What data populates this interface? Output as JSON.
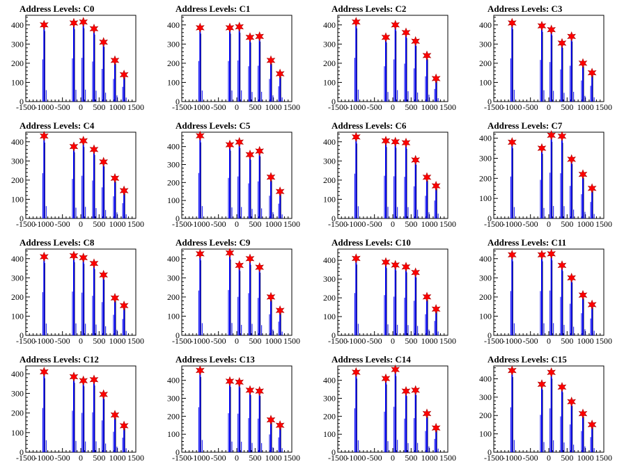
{
  "chart_data": [
    {
      "type": "bar",
      "title": "Address Levels: C0",
      "xlim": [
        -1500,
        1500
      ],
      "ylim": [
        0,
        450
      ],
      "xticks": [
        "-1500",
        "-1000",
        "-500",
        "0",
        "500",
        "1000",
        "1500"
      ],
      "yticks": [
        "0",
        "100",
        "200",
        "300",
        "400"
      ],
      "peaks": [
        {
          "x": -1000,
          "y": 400
        },
        {
          "x": -190,
          "y": 410
        },
        {
          "x": 70,
          "y": 415
        },
        {
          "x": 360,
          "y": 380
        },
        {
          "x": 620,
          "y": 310
        },
        {
          "x": 930,
          "y": 215
        },
        {
          "x": 1180,
          "y": 140
        }
      ]
    },
    {
      "type": "bar",
      "title": "Address Levels: C1",
      "xlim": [
        -1500,
        1500
      ],
      "ylim": [
        0,
        450
      ],
      "xticks": [
        "-1500",
        "-1000",
        "-500",
        "0",
        "500",
        "1000",
        "1500"
      ],
      "yticks": [
        "0",
        "100",
        "200",
        "300",
        "400"
      ],
      "peaks": [
        {
          "x": -1000,
          "y": 385
        },
        {
          "x": -190,
          "y": 385
        },
        {
          "x": 70,
          "y": 390
        },
        {
          "x": 360,
          "y": 335
        },
        {
          "x": 620,
          "y": 340
        },
        {
          "x": 930,
          "y": 215
        },
        {
          "x": 1180,
          "y": 145
        }
      ]
    },
    {
      "type": "bar",
      "title": "Address Levels: C2",
      "xlim": [
        -1500,
        1500
      ],
      "ylim": [
        0,
        450
      ],
      "xticks": [
        "-1500",
        "-1000",
        "-500",
        "0",
        "500",
        "1000",
        "1500"
      ],
      "yticks": [
        "0",
        "100",
        "200",
        "300",
        "400"
      ],
      "peaks": [
        {
          "x": -1000,
          "y": 415
        },
        {
          "x": -190,
          "y": 335
        },
        {
          "x": 70,
          "y": 400
        },
        {
          "x": 360,
          "y": 360
        },
        {
          "x": 620,
          "y": 315
        },
        {
          "x": 930,
          "y": 240
        },
        {
          "x": 1180,
          "y": 120
        }
      ]
    },
    {
      "type": "bar",
      "title": "Address Levels: C3",
      "xlim": [
        -1500,
        1500
      ],
      "ylim": [
        0,
        450
      ],
      "xticks": [
        "-1500",
        "-1000",
        "-500",
        "0",
        "500",
        "1000",
        "1500"
      ],
      "yticks": [
        "0",
        "100",
        "200",
        "300",
        "400"
      ],
      "peaks": [
        {
          "x": -1000,
          "y": 410
        },
        {
          "x": -190,
          "y": 395
        },
        {
          "x": 70,
          "y": 375
        },
        {
          "x": 360,
          "y": 305
        },
        {
          "x": 620,
          "y": 340
        },
        {
          "x": 930,
          "y": 200
        },
        {
          "x": 1180,
          "y": 150
        }
      ]
    },
    {
      "type": "bar",
      "title": "Address Levels: C4",
      "xlim": [
        -1500,
        1500
      ],
      "ylim": [
        0,
        450
      ],
      "xticks": [
        "-1500",
        "-1000",
        "-500",
        "0",
        "500",
        "1000",
        "1500"
      ],
      "yticks": [
        "0",
        "100",
        "200",
        "300",
        "400"
      ],
      "peaks": [
        {
          "x": -1000,
          "y": 430
        },
        {
          "x": -190,
          "y": 375
        },
        {
          "x": 70,
          "y": 405
        },
        {
          "x": 360,
          "y": 360
        },
        {
          "x": 620,
          "y": 295
        },
        {
          "x": 930,
          "y": 210
        },
        {
          "x": 1180,
          "y": 145
        }
      ]
    },
    {
      "type": "bar",
      "title": "Address Levels: C5",
      "xlim": [
        -1500,
        1500
      ],
      "ylim": [
        0,
        480
      ],
      "xticks": [
        "-1500",
        "-1000",
        "-500",
        "0",
        "500",
        "1000",
        "1500"
      ],
      "yticks": [
        "0",
        "100",
        "200",
        "300",
        "400"
      ],
      "peaks": [
        {
          "x": -1000,
          "y": 460
        },
        {
          "x": -190,
          "y": 410
        },
        {
          "x": 70,
          "y": 425
        },
        {
          "x": 360,
          "y": 355
        },
        {
          "x": 620,
          "y": 375
        },
        {
          "x": 930,
          "y": 230
        },
        {
          "x": 1180,
          "y": 150
        }
      ]
    },
    {
      "type": "bar",
      "title": "Address Levels: C6",
      "xlim": [
        -1500,
        1500
      ],
      "ylim": [
        0,
        450
      ],
      "xticks": [
        "-1500",
        "-1000",
        "-500",
        "0",
        "500",
        "1000",
        "1500"
      ],
      "yticks": [
        "0",
        "100",
        "200",
        "300",
        "400"
      ],
      "peaks": [
        {
          "x": -1000,
          "y": 425
        },
        {
          "x": -190,
          "y": 405
        },
        {
          "x": 70,
          "y": 400
        },
        {
          "x": 360,
          "y": 395
        },
        {
          "x": 620,
          "y": 305
        },
        {
          "x": 930,
          "y": 215
        },
        {
          "x": 1180,
          "y": 170
        }
      ]
    },
    {
      "type": "bar",
      "title": "Address Levels: C7",
      "xlim": [
        -1500,
        1500
      ],
      "ylim": [
        0,
        430
      ],
      "xticks": [
        "-1500",
        "-1000",
        "-500",
        "0",
        "500",
        "1000",
        "1500"
      ],
      "yticks": [
        "0",
        "100",
        "200",
        "300",
        "400"
      ],
      "peaks": [
        {
          "x": -1000,
          "y": 380
        },
        {
          "x": -190,
          "y": 350
        },
        {
          "x": 70,
          "y": 415
        },
        {
          "x": 360,
          "y": 410
        },
        {
          "x": 620,
          "y": 295
        },
        {
          "x": 930,
          "y": 220
        },
        {
          "x": 1180,
          "y": 150
        }
      ]
    },
    {
      "type": "bar",
      "title": "Address Levels: C8",
      "xlim": [
        -1500,
        1500
      ],
      "ylim": [
        0,
        450
      ],
      "xticks": [
        "-1500",
        "-1000",
        "-500",
        "0",
        "500",
        "1000",
        "1500"
      ],
      "yticks": [
        "0",
        "100",
        "200",
        "300",
        "400"
      ],
      "peaks": [
        {
          "x": -1000,
          "y": 410
        },
        {
          "x": -190,
          "y": 415
        },
        {
          "x": 70,
          "y": 405
        },
        {
          "x": 360,
          "y": 375
        },
        {
          "x": 620,
          "y": 315
        },
        {
          "x": 930,
          "y": 195
        },
        {
          "x": 1180,
          "y": 155
        }
      ]
    },
    {
      "type": "bar",
      "title": "Address Levels: C9",
      "xlim": [
        -1500,
        1500
      ],
      "ylim": [
        0,
        450
      ],
      "xticks": [
        "-1500",
        "-1000",
        "-500",
        "0",
        "500",
        "1000",
        "1500"
      ],
      "yticks": [
        "0",
        "100",
        "200",
        "300",
        "400"
      ],
      "peaks": [
        {
          "x": -1000,
          "y": 425
        },
        {
          "x": -190,
          "y": 430
        },
        {
          "x": 70,
          "y": 365
        },
        {
          "x": 360,
          "y": 400
        },
        {
          "x": 620,
          "y": 355
        },
        {
          "x": 930,
          "y": 200
        },
        {
          "x": 1180,
          "y": 130
        }
      ]
    },
    {
      "type": "bar",
      "title": "Address Levels: C10",
      "xlim": [
        -1500,
        1500
      ],
      "ylim": [
        0,
        460
      ],
      "xticks": [
        "-1500",
        "-1000",
        "-500",
        "0",
        "500",
        "1000",
        "1500"
      ],
      "yticks": [
        "0",
        "100",
        "200",
        "300",
        "400"
      ],
      "peaks": [
        {
          "x": -1000,
          "y": 410
        },
        {
          "x": -190,
          "y": 390
        },
        {
          "x": 70,
          "y": 375
        },
        {
          "x": 360,
          "y": 365
        },
        {
          "x": 620,
          "y": 335
        },
        {
          "x": 930,
          "y": 205
        },
        {
          "x": 1180,
          "y": 140
        }
      ]
    },
    {
      "type": "bar",
      "title": "Address Levels: C11",
      "xlim": [
        -1500,
        1500
      ],
      "ylim": [
        0,
        450
      ],
      "xticks": [
        "-1500",
        "-1000",
        "-500",
        "0",
        "500",
        "1000",
        "1500"
      ],
      "yticks": [
        "0",
        "100",
        "200",
        "300",
        "400"
      ],
      "peaks": [
        {
          "x": -1000,
          "y": 420
        },
        {
          "x": -190,
          "y": 420
        },
        {
          "x": 70,
          "y": 425
        },
        {
          "x": 360,
          "y": 365
        },
        {
          "x": 620,
          "y": 300
        },
        {
          "x": 930,
          "y": 210
        },
        {
          "x": 1180,
          "y": 160
        }
      ]
    },
    {
      "type": "bar",
      "title": "Address Levels: C12",
      "xlim": [
        -1500,
        1500
      ],
      "ylim": [
        0,
        440
      ],
      "xticks": [
        "-1500",
        "-1000",
        "-500",
        "0",
        "500",
        "1000",
        "1500"
      ],
      "yticks": [
        "0",
        "100",
        "200",
        "300",
        "400"
      ],
      "peaks": [
        {
          "x": -1000,
          "y": 410
        },
        {
          "x": -190,
          "y": 385
        },
        {
          "x": 70,
          "y": 365
        },
        {
          "x": 360,
          "y": 370
        },
        {
          "x": 620,
          "y": 295
        },
        {
          "x": 930,
          "y": 190
        },
        {
          "x": 1180,
          "y": 135
        }
      ]
    },
    {
      "type": "bar",
      "title": "Address Levels: C13",
      "xlim": [
        -1500,
        1500
      ],
      "ylim": [
        0,
        480
      ],
      "xticks": [
        "-1500",
        "-1000",
        "-500",
        "0",
        "500",
        "1000",
        "1500"
      ],
      "yticks": [
        "0",
        "100",
        "200",
        "300",
        "400"
      ],
      "peaks": [
        {
          "x": -1000,
          "y": 455
        },
        {
          "x": -190,
          "y": 395
        },
        {
          "x": 70,
          "y": 390
        },
        {
          "x": 360,
          "y": 345
        },
        {
          "x": 620,
          "y": 340
        },
        {
          "x": 930,
          "y": 180
        },
        {
          "x": 1180,
          "y": 150
        }
      ]
    },
    {
      "type": "bar",
      "title": "Address Levels: C14",
      "xlim": [
        -1500,
        1500
      ],
      "ylim": [
        0,
        480
      ],
      "xticks": [
        "-1500",
        "-1000",
        "-500",
        "0",
        "500",
        "1000",
        "1500"
      ],
      "yticks": [
        "0",
        "100",
        "200",
        "300",
        "400"
      ],
      "peaks": [
        {
          "x": -1000,
          "y": 445
        },
        {
          "x": -190,
          "y": 410
        },
        {
          "x": 70,
          "y": 460
        },
        {
          "x": 360,
          "y": 340
        },
        {
          "x": 620,
          "y": 345
        },
        {
          "x": 930,
          "y": 215
        },
        {
          "x": 1180,
          "y": 135
        }
      ]
    },
    {
      "type": "bar",
      "title": "Address Levels: C15",
      "xlim": [
        -1500,
        1500
      ],
      "ylim": [
        0,
        470
      ],
      "xticks": [
        "-1500",
        "-1000",
        "-500",
        "0",
        "500",
        "1000",
        "1500"
      ],
      "yticks": [
        "0",
        "100",
        "200",
        "300",
        "400"
      ],
      "peaks": [
        {
          "x": -1000,
          "y": 445
        },
        {
          "x": -190,
          "y": 370
        },
        {
          "x": 70,
          "y": 435
        },
        {
          "x": 360,
          "y": 355
        },
        {
          "x": 620,
          "y": 275
        },
        {
          "x": 930,
          "y": 210
        },
        {
          "x": 1180,
          "y": 150
        }
      ]
    }
  ],
  "colors": {
    "bar": "#0000ee",
    "bar_dark": "#000000",
    "marker": "#ff0000",
    "axis": "#000000"
  }
}
